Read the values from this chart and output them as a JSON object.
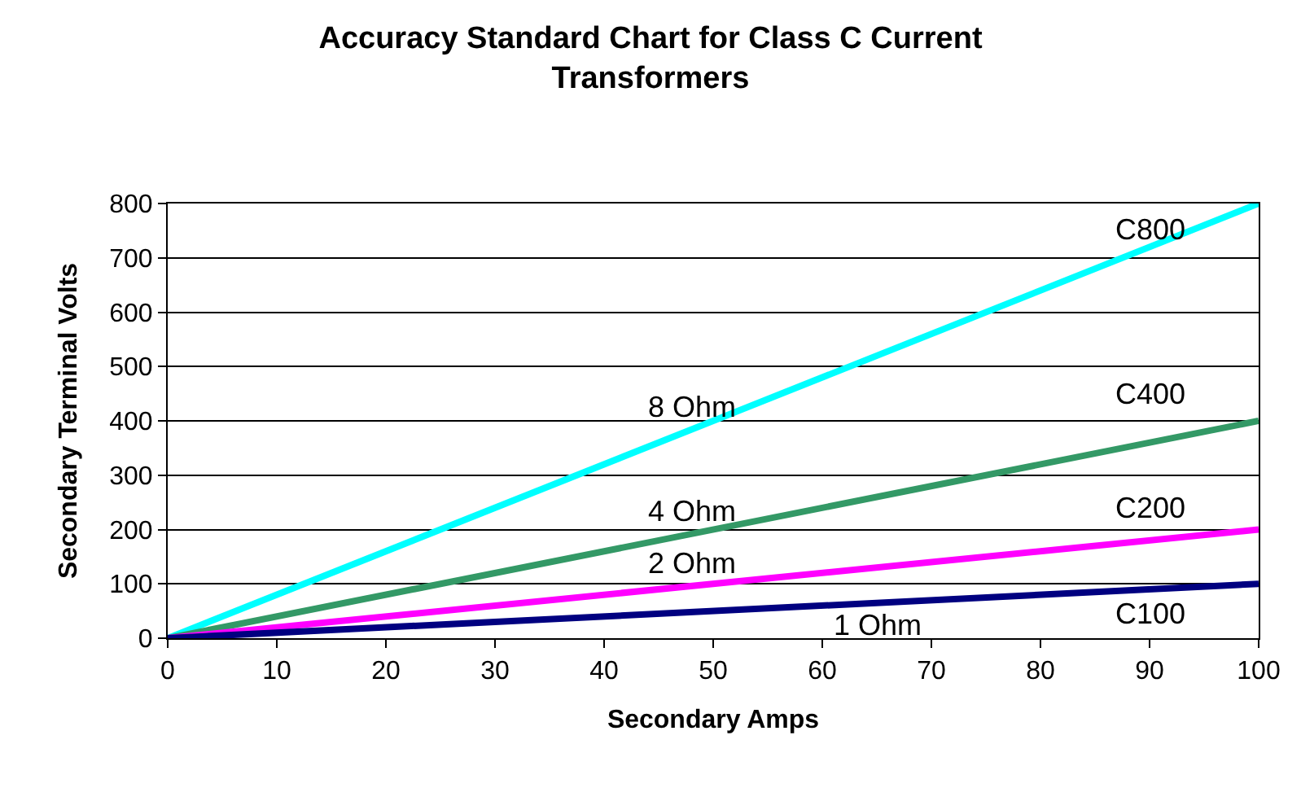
{
  "chart_data": {
    "type": "line",
    "title": "Accuracy Standard Chart for Class C Current Transformers",
    "xlabel": "Secondary Amps",
    "ylabel": "Secondary Terminal Volts",
    "x": [
      0,
      100
    ],
    "series": [
      {
        "name": "8 Ohm",
        "color": "#00ffff",
        "values": [
          0,
          800
        ]
      },
      {
        "name": "4 Ohm",
        "color": "#339966",
        "values": [
          0,
          400
        ]
      },
      {
        "name": "2 Ohm",
        "color": "#ff00ff",
        "values": [
          0,
          200
        ]
      },
      {
        "name": "1 Ohm",
        "color": "#000080",
        "values": [
          0,
          100
        ]
      }
    ],
    "annotations": [
      "C800",
      "C400",
      "C200",
      "C100"
    ],
    "xlim": [
      0,
      100
    ],
    "xticks": [
      0,
      10,
      20,
      30,
      40,
      50,
      60,
      70,
      80,
      90,
      100
    ],
    "ylim": [
      0,
      800
    ],
    "yticks": [
      0,
      100,
      200,
      300,
      400,
      500,
      600,
      700,
      800
    ],
    "grid": "y",
    "legend": false,
    "marker": "none",
    "line_style": "solid"
  }
}
